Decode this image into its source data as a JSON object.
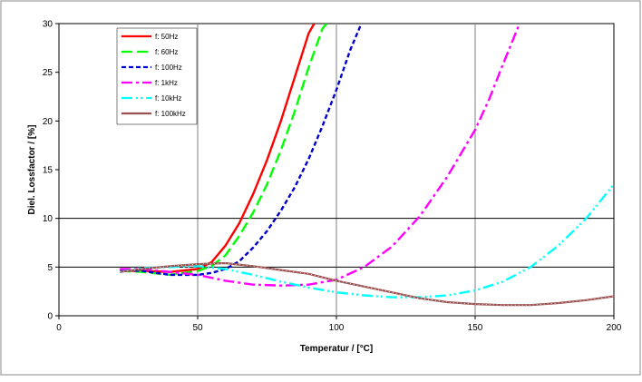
{
  "chart_data": {
    "type": "line",
    "title": "",
    "xlabel": "Temperatur / [°C]",
    "ylabel": "Diel. Lossfactor / [%]",
    "xlim": [
      0,
      200
    ],
    "ylim": [
      0,
      30
    ],
    "x_ticks": [
      0,
      50,
      100,
      150,
      200
    ],
    "y_ticks": [
      0,
      5,
      10,
      15,
      20,
      25,
      30
    ],
    "vertical_gridlines_at": [
      50,
      100,
      150
    ],
    "horizontal_gridlines_at": [
      5,
      10
    ],
    "legend_position": "top-left",
    "series": [
      {
        "name": "f: 50Hz",
        "color": "#ff0000",
        "dash": "solid",
        "x": [
          22,
          30,
          40,
          50,
          55,
          60,
          65,
          70,
          75,
          80,
          85,
          90,
          92
        ],
        "y": [
          4.6,
          4.6,
          4.5,
          4.8,
          5.5,
          7.2,
          9.5,
          12.5,
          16,
          20,
          24.5,
          29,
          30
        ]
      },
      {
        "name": "f: 60Hz",
        "color": "#00ff00",
        "dash": "long-dash",
        "x": [
          22,
          30,
          40,
          50,
          55,
          60,
          65,
          70,
          75,
          80,
          85,
          90,
          95,
          96.5
        ],
        "y": [
          4.6,
          4.5,
          4.2,
          4.6,
          5.1,
          6.2,
          8.2,
          10.6,
          13.5,
          17,
          21,
          25.5,
          29.5,
          30
        ]
      },
      {
        "name": "f: 100Hz",
        "color": "#0000cc",
        "dash": "short-dash",
        "x": [
          22,
          30,
          40,
          50,
          55,
          60,
          65,
          70,
          75,
          80,
          85,
          90,
          95,
          100,
          105,
          109
        ],
        "y": [
          4.7,
          4.6,
          4.2,
          4.2,
          4.4,
          4.8,
          5.6,
          7,
          8.7,
          10.8,
          13.2,
          16.1,
          19.5,
          23.2,
          27.3,
          30
        ]
      },
      {
        "name": "f: 1kHz",
        "color": "#ff00ff",
        "dash": "dash-dot",
        "x": [
          22,
          30,
          40,
          50,
          60,
          70,
          80,
          90,
          100,
          110,
          120,
          130,
          140,
          150,
          155,
          160,
          166
        ],
        "y": [
          4.8,
          4.8,
          4.5,
          4.2,
          3.6,
          3.2,
          3.1,
          3.2,
          3.7,
          5,
          7.1,
          10.2,
          14.3,
          19.1,
          22.2,
          25.8,
          30
        ]
      },
      {
        "name": "f: 10kHz",
        "color": "#00ffff",
        "dash": "dash-dot-dot",
        "x": [
          22,
          30,
          40,
          50,
          60,
          70,
          80,
          90,
          100,
          110,
          120,
          130,
          140,
          150,
          160,
          170,
          180,
          190,
          200
        ],
        "y": [
          4.5,
          4.9,
          5,
          5.1,
          4.8,
          4.2,
          3.5,
          2.9,
          2.4,
          2.1,
          1.9,
          1.9,
          2.1,
          2.6,
          3.5,
          5,
          7.2,
          10,
          13.5
        ]
      },
      {
        "name": "f: 100kHz",
        "color": "#9b4f4f",
        "dash": "solid-dotted",
        "x": [
          22,
          30,
          40,
          50,
          60,
          70,
          80,
          90,
          100,
          110,
          120,
          130,
          140,
          150,
          160,
          170,
          180,
          190,
          200
        ],
        "y": [
          4.5,
          4.8,
          5.1,
          5.3,
          5.4,
          5.1,
          4.7,
          4.3,
          3.6,
          3,
          2.4,
          1.8,
          1.4,
          1.2,
          1.1,
          1.1,
          1.3,
          1.6,
          2
        ]
      }
    ]
  }
}
